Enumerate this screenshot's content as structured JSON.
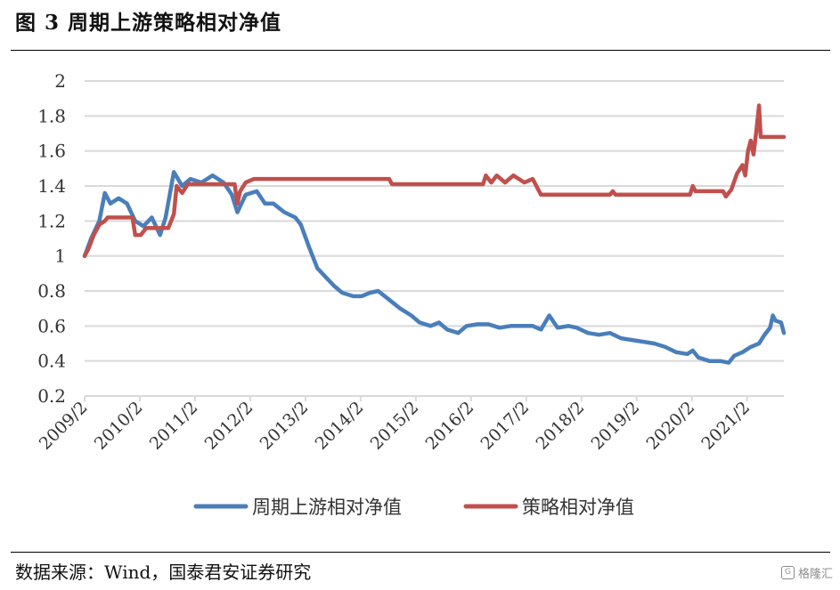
{
  "figure": {
    "title": "图 3 周期上游策略相对净值",
    "source": "数据来源：Wind，国泰君安证券研究",
    "watermark": "格隆汇",
    "watermark_icon": "G"
  },
  "chart_data": {
    "type": "line",
    "title": "",
    "xlabel": "",
    "ylabel": "",
    "ylim": [
      0.2,
      2
    ],
    "yticks": [
      "0.2",
      "0.4",
      "0.6",
      "0.8",
      "1",
      "1.2",
      "1.4",
      "1.6",
      "1.8",
      "2"
    ],
    "xlim": [
      2009.083,
      2021.75
    ],
    "xticks": [
      "2009/2",
      "2010/2",
      "2011/2",
      "2012/2",
      "2013/2",
      "2014/2",
      "2015/2",
      "2016/2",
      "2017/2",
      "2018/2",
      "2019/2",
      "2020/2",
      "2021/2"
    ],
    "grid": true,
    "legend_position": "bottom",
    "series": [
      {
        "name": "周期上游相对净值",
        "color": "#4a7ebb",
        "points": [
          [
            2009.083,
            1.0
          ],
          [
            2009.2,
            1.1
          ],
          [
            2009.35,
            1.2
          ],
          [
            2009.45,
            1.36
          ],
          [
            2009.55,
            1.3
          ],
          [
            2009.7,
            1.33
          ],
          [
            2009.85,
            1.3
          ],
          [
            2010.0,
            1.2
          ],
          [
            2010.15,
            1.17
          ],
          [
            2010.3,
            1.22
          ],
          [
            2010.45,
            1.12
          ],
          [
            2010.55,
            1.22
          ],
          [
            2010.7,
            1.48
          ],
          [
            2010.85,
            1.4
          ],
          [
            2011.0,
            1.44
          ],
          [
            2011.2,
            1.42
          ],
          [
            2011.4,
            1.46
          ],
          [
            2011.6,
            1.42
          ],
          [
            2011.75,
            1.35
          ],
          [
            2011.85,
            1.25
          ],
          [
            2012.0,
            1.35
          ],
          [
            2012.2,
            1.37
          ],
          [
            2012.35,
            1.3
          ],
          [
            2012.5,
            1.3
          ],
          [
            2012.7,
            1.25
          ],
          [
            2012.9,
            1.22
          ],
          [
            2013.0,
            1.18
          ],
          [
            2013.15,
            1.05
          ],
          [
            2013.3,
            0.93
          ],
          [
            2013.45,
            0.88
          ],
          [
            2013.6,
            0.83
          ],
          [
            2013.75,
            0.79
          ],
          [
            2013.95,
            0.77
          ],
          [
            2014.1,
            0.77
          ],
          [
            2014.25,
            0.79
          ],
          [
            2014.4,
            0.8
          ],
          [
            2014.6,
            0.75
          ],
          [
            2014.8,
            0.7
          ],
          [
            2015.0,
            0.66
          ],
          [
            2015.15,
            0.62
          ],
          [
            2015.35,
            0.6
          ],
          [
            2015.5,
            0.62
          ],
          [
            2015.65,
            0.58
          ],
          [
            2015.85,
            0.56
          ],
          [
            2016.0,
            0.6
          ],
          [
            2016.2,
            0.61
          ],
          [
            2016.4,
            0.61
          ],
          [
            2016.6,
            0.59
          ],
          [
            2016.8,
            0.6
          ],
          [
            2017.0,
            0.6
          ],
          [
            2017.2,
            0.6
          ],
          [
            2017.35,
            0.58
          ],
          [
            2017.5,
            0.66
          ],
          [
            2017.65,
            0.59
          ],
          [
            2017.85,
            0.6
          ],
          [
            2018.0,
            0.59
          ],
          [
            2018.2,
            0.56
          ],
          [
            2018.4,
            0.55
          ],
          [
            2018.6,
            0.56
          ],
          [
            2018.8,
            0.53
          ],
          [
            2019.0,
            0.52
          ],
          [
            2019.2,
            0.51
          ],
          [
            2019.4,
            0.5
          ],
          [
            2019.6,
            0.48
          ],
          [
            2019.8,
            0.45
          ],
          [
            2020.0,
            0.44
          ],
          [
            2020.1,
            0.46
          ],
          [
            2020.2,
            0.42
          ],
          [
            2020.4,
            0.4
          ],
          [
            2020.6,
            0.4
          ],
          [
            2020.75,
            0.39
          ],
          [
            2020.85,
            0.43
          ],
          [
            2021.0,
            0.45
          ],
          [
            2021.15,
            0.48
          ],
          [
            2021.3,
            0.5
          ],
          [
            2021.4,
            0.55
          ],
          [
            2021.5,
            0.59
          ],
          [
            2021.55,
            0.66
          ],
          [
            2021.6,
            0.63
          ],
          [
            2021.7,
            0.62
          ],
          [
            2021.75,
            0.56
          ]
        ]
      },
      {
        "name": "策略相对净值",
        "color": "#c0504d",
        "points": [
          [
            2009.083,
            1.0
          ],
          [
            2009.15,
            1.04
          ],
          [
            2009.25,
            1.12
          ],
          [
            2009.35,
            1.18
          ],
          [
            2009.45,
            1.2
          ],
          [
            2009.5,
            1.22
          ],
          [
            2009.95,
            1.22
          ],
          [
            2010.0,
            1.12
          ],
          [
            2010.1,
            1.12
          ],
          [
            2010.2,
            1.16
          ],
          [
            2010.6,
            1.16
          ],
          [
            2010.7,
            1.24
          ],
          [
            2010.75,
            1.4
          ],
          [
            2010.85,
            1.36
          ],
          [
            2010.95,
            1.41
          ],
          [
            2011.8,
            1.41
          ],
          [
            2011.85,
            1.3
          ],
          [
            2011.9,
            1.37
          ],
          [
            2012.0,
            1.42
          ],
          [
            2012.15,
            1.44
          ],
          [
            2014.6,
            1.44
          ],
          [
            2014.65,
            1.41
          ],
          [
            2016.3,
            1.41
          ],
          [
            2016.35,
            1.46
          ],
          [
            2016.45,
            1.42
          ],
          [
            2016.55,
            1.46
          ],
          [
            2016.7,
            1.42
          ],
          [
            2016.85,
            1.46
          ],
          [
            2017.05,
            1.42
          ],
          [
            2017.2,
            1.44
          ],
          [
            2017.3,
            1.38
          ],
          [
            2017.35,
            1.35
          ],
          [
            2018.6,
            1.35
          ],
          [
            2018.65,
            1.37
          ],
          [
            2018.7,
            1.35
          ],
          [
            2020.05,
            1.35
          ],
          [
            2020.1,
            1.4
          ],
          [
            2020.15,
            1.37
          ],
          [
            2020.65,
            1.37
          ],
          [
            2020.7,
            1.34
          ],
          [
            2020.8,
            1.38
          ],
          [
            2020.9,
            1.47
          ],
          [
            2021.0,
            1.52
          ],
          [
            2021.05,
            1.46
          ],
          [
            2021.1,
            1.6
          ],
          [
            2021.15,
            1.66
          ],
          [
            2021.2,
            1.58
          ],
          [
            2021.25,
            1.71
          ],
          [
            2021.3,
            1.86
          ],
          [
            2021.33,
            1.68
          ],
          [
            2021.75,
            1.68
          ]
        ]
      }
    ]
  }
}
